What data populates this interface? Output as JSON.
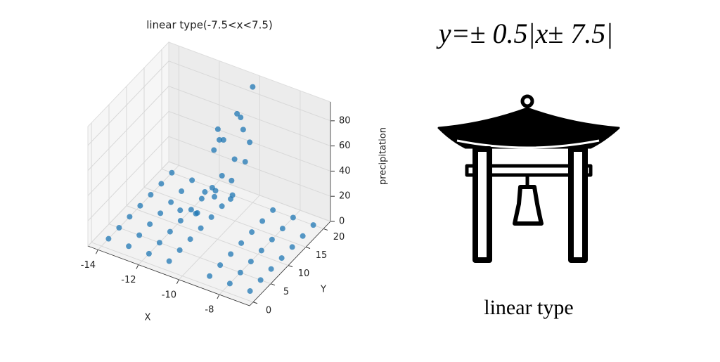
{
  "chart_data": {
    "type": "scatter3d",
    "title": "linear type(-7.5<x<7.5)",
    "xlabel": "X",
    "ylabel": "Y",
    "zlabel": "precipitation",
    "color": "#1f77b4",
    "xlim": [
      -14.5,
      -6.5
    ],
    "ylim": [
      -1,
      22
    ],
    "zlim": [
      0,
      95
    ],
    "xticks": [
      -14,
      -12,
      -10,
      -8
    ],
    "yticks": [
      0,
      5,
      10,
      15,
      20
    ],
    "zticks": [
      0,
      20,
      40,
      60,
      80
    ],
    "x": [
      -14,
      -13,
      -12,
      -11,
      -9,
      -8,
      -7,
      -14,
      -13,
      -12,
      -11,
      -9,
      -8,
      -7,
      -14,
      -13,
      -12,
      -11,
      -9,
      -8,
      -7,
      -14,
      -13,
      -12,
      -11,
      -9,
      -8,
      -7,
      -14,
      -13,
      -12,
      -11,
      -9,
      -8,
      -7,
      -14,
      -13,
      -12,
      -11,
      -9,
      -8,
      -7,
      -14,
      -13,
      -12,
      -11,
      -9,
      -8,
      -7,
      -11,
      -10.5,
      -10,
      -10.2,
      -9.8,
      -11.5,
      -10.8,
      -10.3,
      -9.5,
      -11.2,
      -10.6,
      -10,
      -9.7,
      -10.9,
      -10.4,
      -9.9,
      -11.3,
      -10.1,
      -10.7,
      -9.6
    ],
    "y": [
      2,
      2,
      2,
      2,
      2,
      2,
      2,
      5,
      5,
      5,
      5,
      5,
      5,
      5,
      8,
      8,
      8,
      8,
      8,
      8,
      8,
      11,
      11,
      11,
      11,
      11,
      11,
      11,
      14,
      14,
      14,
      14,
      14,
      14,
      14,
      17,
      17,
      17,
      17,
      17,
      17,
      17,
      20,
      20,
      20,
      20,
      20,
      20,
      20,
      10,
      12,
      14,
      16,
      18,
      8,
      11,
      13,
      15,
      17,
      19,
      20,
      12,
      9,
      14,
      16,
      18,
      10,
      13,
      15
    ],
    "z": [
      0,
      0,
      0,
      0,
      0,
      0,
      0,
      0,
      0,
      0,
      0,
      0,
      0,
      0,
      0,
      0,
      0,
      0,
      0,
      0,
      0,
      0,
      0,
      0,
      0,
      0,
      0,
      0,
      0,
      0,
      0,
      0,
      0,
      0,
      0,
      0,
      0,
      0,
      0,
      0,
      0,
      0,
      0,
      0,
      0,
      0,
      0,
      0,
      0,
      15,
      25,
      35,
      45,
      55,
      20,
      30,
      40,
      50,
      60,
      70,
      92,
      28,
      18,
      65,
      80,
      48,
      38,
      58,
      75
    ]
  },
  "formula": "y=± 0.5|x± 7.5|",
  "caption": "linear type"
}
